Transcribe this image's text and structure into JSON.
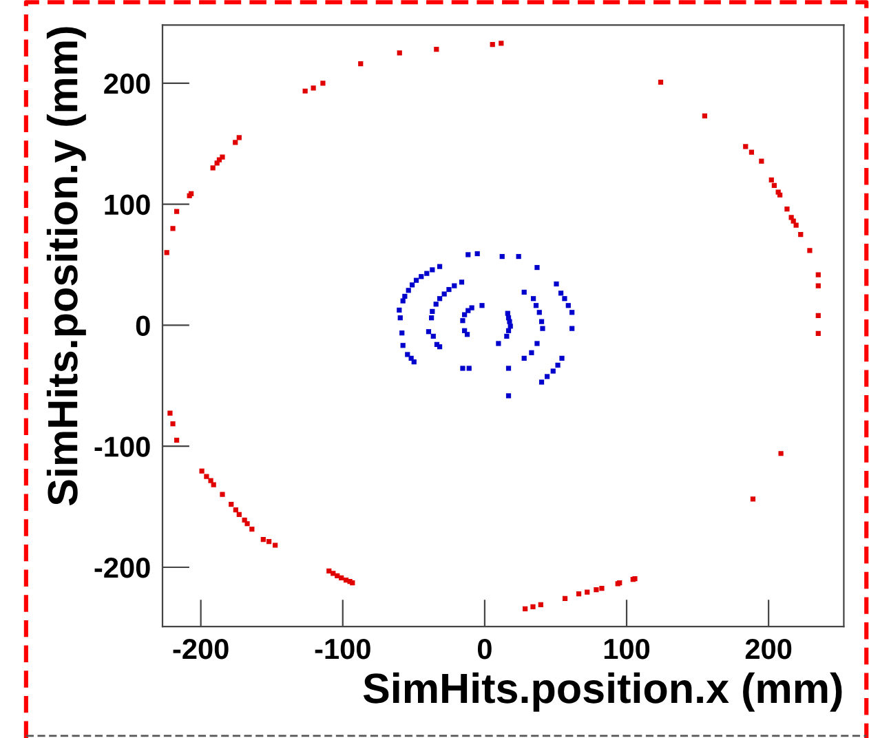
{
  "chart_data": {
    "type": "scatter",
    "xlabel": "SimHits.position.x (mm)",
    "ylabel": "SimHits.position.y (mm)",
    "xlim": [
      -227,
      253
    ],
    "ylim": [
      -249,
      248
    ],
    "xticks": [
      -200,
      -100,
      0,
      100,
      200
    ],
    "yticks": [
      -200,
      -100,
      0,
      100,
      200
    ],
    "marker": "square",
    "grid": false,
    "legend": false,
    "series": [
      {
        "color": "#e00000",
        "x": [
          5.5,
          11.6,
          -34,
          -60,
          -87.4,
          -114,
          -120.7,
          -126.5,
          -173,
          -175.7,
          -184.8,
          -187,
          -188.6,
          -191.5,
          -206.8,
          -208,
          -217,
          -219.7,
          -224,
          124,
          155,
          183.8,
          188,
          195,
          202,
          204,
          206.8,
          208,
          213,
          216,
          217.5,
          219.4,
          222.6,
          229,
          235,
          235,
          235,
          -221.7,
          -219.7,
          -217,
          -199.3,
          -196,
          -193,
          -191,
          -184.8,
          -178.6,
          -175.4,
          -173,
          -169.2,
          -167.3,
          -164,
          -156,
          -152,
          -147.6,
          -109.7,
          -106.8,
          -103.9,
          -101,
          -97.7,
          -95,
          -93.2,
          235,
          208.7,
          189,
          105.8,
          104.5,
          95,
          93.8,
          82.5,
          78.6,
          72.2,
          66.3,
          56.6,
          39.5,
          34,
          28.5
        ],
        "values": [
          232,
          233,
          228,
          225,
          216,
          200,
          196,
          193.5,
          155,
          151,
          139,
          136.7,
          134,
          130,
          108.7,
          107,
          94,
          80,
          60,
          200.8,
          173,
          147.7,
          143,
          135.6,
          120,
          115.5,
          110,
          107.6,
          96,
          89,
          86,
          82.6,
          75,
          61.7,
          41.7,
          32.6,
          8,
          -72.7,
          -81.5,
          -95,
          -120.5,
          -125,
          -128.4,
          -131.8,
          -139.8,
          -148,
          -152.6,
          -156.4,
          -161,
          -164,
          -168.5,
          -177,
          -178.8,
          -181.8,
          -203,
          -205,
          -207,
          -208.7,
          -210.6,
          -211.7,
          -212.9,
          -6.8,
          -106,
          -143.6,
          -209.5,
          -210,
          -212.9,
          -213.6,
          -217.4,
          -218.6,
          -220.5,
          -222,
          -225.8,
          -231,
          -232.6,
          -234.4
        ]
      },
      {
        "color": "#0000cc",
        "x": [
          -59.5,
          -60.2,
          -57.6,
          -56.3,
          -53.7,
          -51.1,
          -48.2,
          -44.7,
          -40.8,
          -36.9,
          -31.7,
          -58.3,
          -57.6,
          -54.4,
          -51.8,
          -49.8,
          -37.5,
          -36.9,
          -34.3,
          -31.7,
          -28.5,
          -25.2,
          -21.4,
          -16.2,
          -39.5,
          -36.2,
          -33.7,
          -31.7,
          -15.5,
          -14.2,
          -11.7,
          -9.1,
          -14.2,
          -12.3,
          -1.9,
          -11.7,
          -5.2,
          12.3,
          23.9,
          36.9,
          -15.5,
          -11.0,
          16.2,
          16.8,
          17.5,
          18.1,
          16.8,
          15.5,
          9.7,
          16.8,
          16.8,
          27.8,
          34.3,
          36.2,
          38.5,
          40.1,
          40.8,
          36.9,
          33.0,
          27.8,
          50.5,
          53.7,
          56.3,
          58.9,
          61.5,
          61.5,
          54.4,
          51.5,
          48.2,
          44.0,
          40.1
        ],
        "values": [
          6.1,
          12.5,
          20.1,
          23.9,
          28.8,
          33.3,
          37.1,
          40.2,
          42.8,
          45.8,
          48.5,
          -6.4,
          -16.7,
          -24.2,
          -27.3,
          -30.3,
          6.1,
          11.4,
          17.4,
          22.0,
          25.8,
          29.5,
          32.6,
          35.6,
          -5.3,
          -9.1,
          -15.9,
          -17.8,
          3.8,
          8.7,
          12.1,
          14.4,
          -4.5,
          -7.6,
          16.3,
          58.3,
          59.1,
          56.8,
          56.8,
          47.7,
          -35.6,
          -35.6,
          9.8,
          6.1,
          3.0,
          -0.8,
          -4.5,
          -9.1,
          -15.1,
          -35.6,
          -58.3,
          27.3,
          22.0,
          16.3,
          10.6,
          3.0,
          -2.7,
          -15.1,
          -22.7,
          -27.3,
          34.1,
          26.5,
          22.0,
          16.3,
          10.6,
          -2.7,
          -27.3,
          -33.0,
          -37.9,
          -42.4,
          -47.0
        ]
      }
    ]
  }
}
